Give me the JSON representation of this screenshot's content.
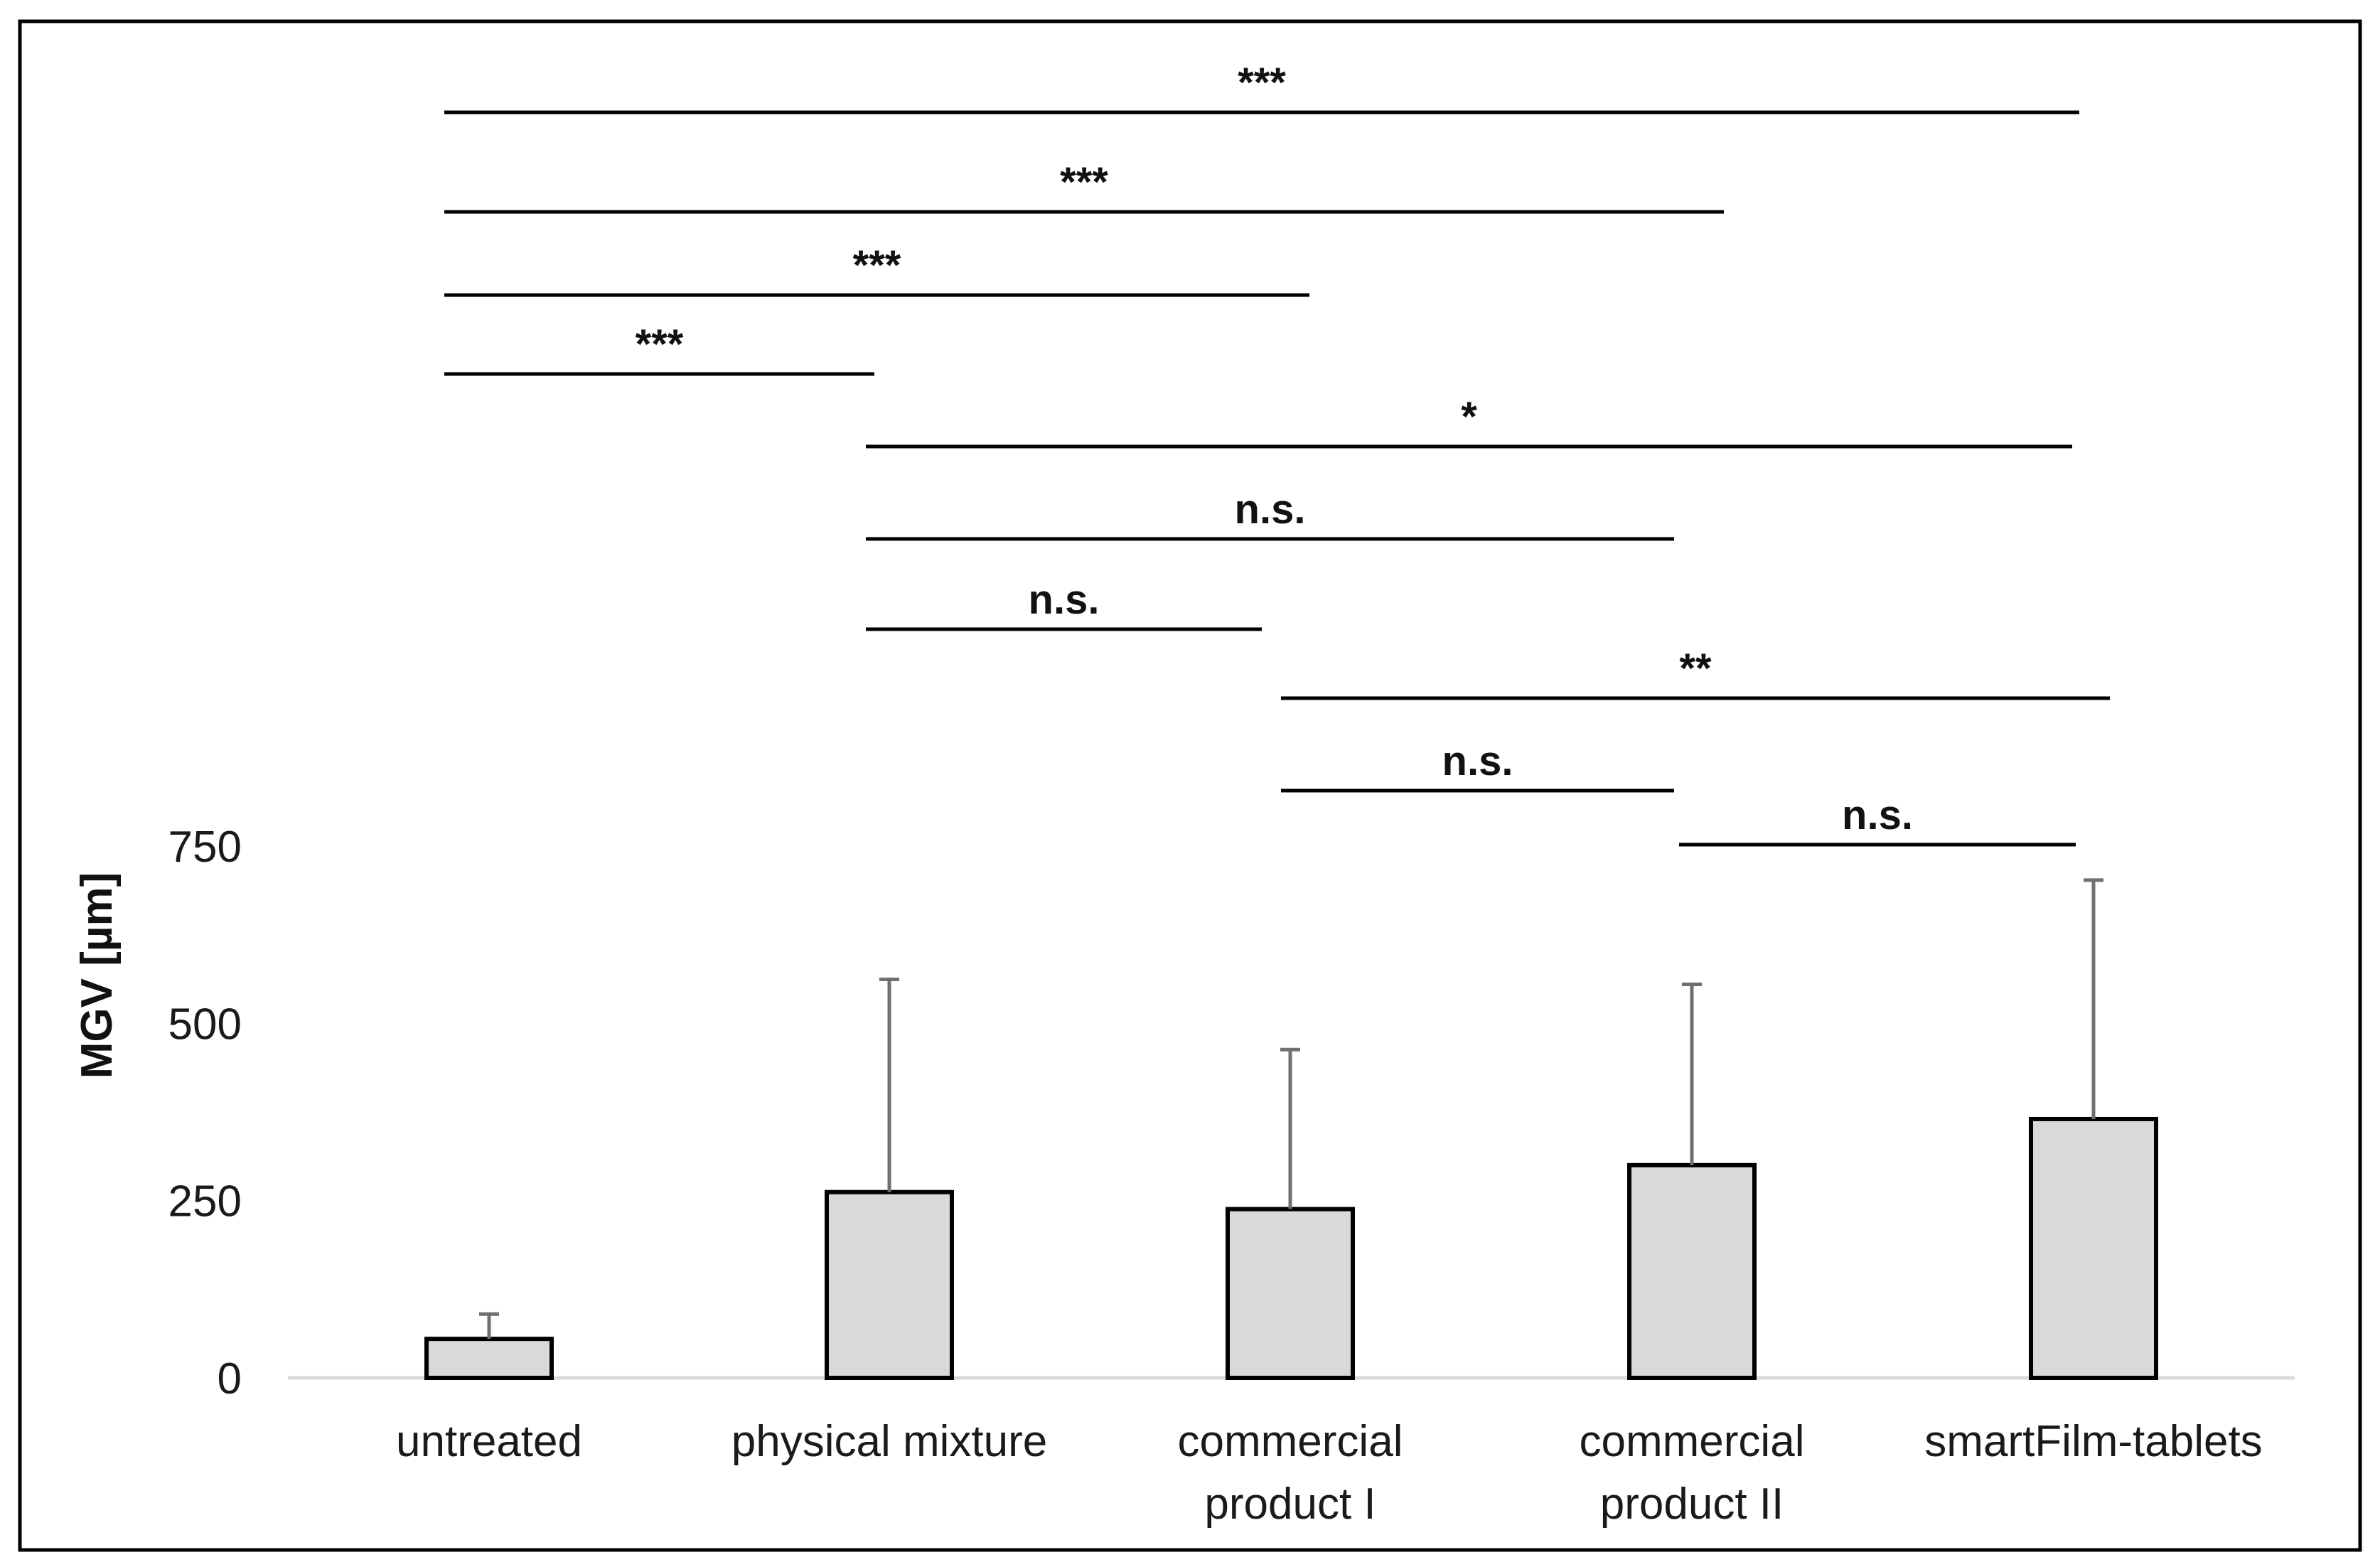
{
  "chart_data": {
    "type": "bar",
    "title": "",
    "xlabel": "",
    "ylabel": "MGV [µm]",
    "ylim": [
      0,
      750
    ],
    "yticks": [
      "0",
      "250",
      "500",
      "750"
    ],
    "categories": [
      [
        "untreated"
      ],
      [
        "physical mixture"
      ],
      [
        "commercial",
        "product I"
      ],
      [
        "commercial",
        "product II"
      ],
      [
        "smartFilm-tablets"
      ]
    ],
    "values": [
      55,
      262,
      238,
      300,
      365
    ],
    "errors": [
      35,
      300,
      225,
      255,
      337
    ],
    "grid": false,
    "legend": "none",
    "significance": [
      {
        "from": 0,
        "to": 4,
        "label": "***",
        "level": 0
      },
      {
        "from": 0,
        "to": 3,
        "label": "***",
        "level": 1
      },
      {
        "from": 0,
        "to": 2,
        "label": "***",
        "level": 2
      },
      {
        "from": 0,
        "to": 1,
        "label": "***",
        "level": 3
      },
      {
        "from": 1,
        "to": 4,
        "label": "*",
        "level": 4
      },
      {
        "from": 1,
        "to": 3,
        "label": "n.s.",
        "level": 5
      },
      {
        "from": 1,
        "to": 2,
        "label": "n.s.",
        "level": 6
      },
      {
        "from": 2,
        "to": 4,
        "label": "**",
        "level": 7
      },
      {
        "from": 2,
        "to": 3,
        "label": "n.s.",
        "level": 8
      },
      {
        "from": 3,
        "to": 4,
        "label": "n.s.",
        "level": 9
      }
    ]
  }
}
